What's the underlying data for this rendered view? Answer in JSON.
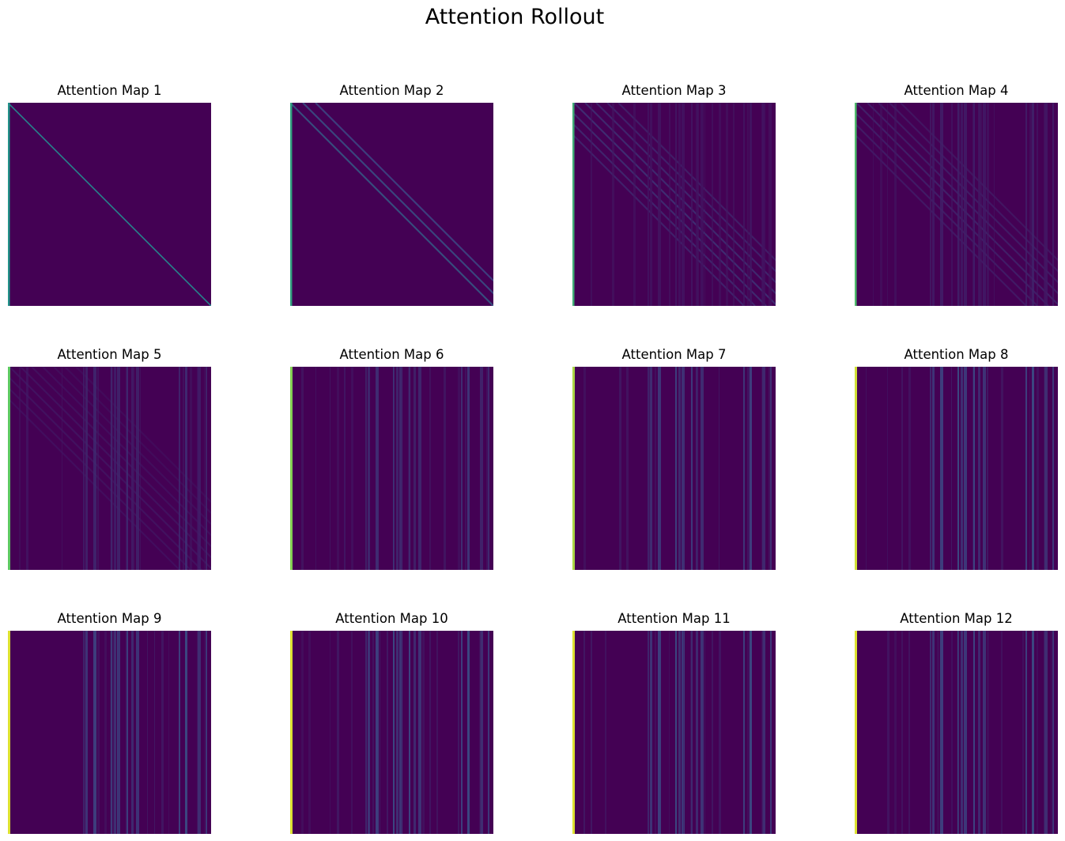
{
  "chart_data": {
    "title": "Attention Rollout",
    "type": "heatmap",
    "colormap": "viridis",
    "axes_visible": false,
    "grid": false,
    "legend": "none",
    "rows": 3,
    "cols": 4,
    "maps": [
      {
        "title": "Attention Map 1",
        "layer": 1
      },
      {
        "title": "Attention Map 2",
        "layer": 2
      },
      {
        "title": "Attention Map 3",
        "layer": 3
      },
      {
        "title": "Attention Map 4",
        "layer": 4
      },
      {
        "title": "Attention Map 5",
        "layer": 5
      },
      {
        "title": "Attention Map 6",
        "layer": 6
      },
      {
        "title": "Attention Map 7",
        "layer": 7
      },
      {
        "title": "Attention Map 8",
        "layer": 8
      },
      {
        "title": "Attention Map 9",
        "layer": 9
      },
      {
        "title": "Attention Map 10",
        "layer": 10
      },
      {
        "title": "Attention Map 11",
        "layer": 11
      },
      {
        "title": "Attention Map 12",
        "layer": 12
      }
    ]
  }
}
